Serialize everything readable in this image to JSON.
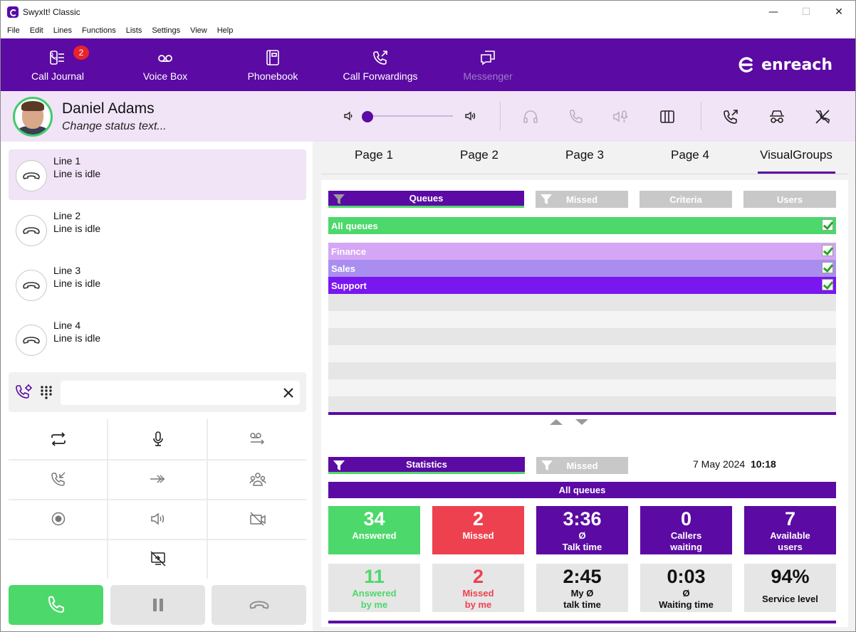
{
  "window": {
    "title": "SwyxIt! Classic",
    "minimize": "—",
    "maximize": "☐",
    "close": "✕"
  },
  "menu": [
    "File",
    "Edit",
    "Lines",
    "Functions",
    "Lists",
    "Settings",
    "View",
    "Help"
  ],
  "toolbar": {
    "items": [
      {
        "label": "Call Journal",
        "icon": "call-journal-icon",
        "badge": "2"
      },
      {
        "label": "Voice Box",
        "icon": "voicemail-icon"
      },
      {
        "label": "Phonebook",
        "icon": "phonebook-icon"
      },
      {
        "label": "Call Forwardings",
        "icon": "call-forward-icon"
      },
      {
        "label": "Messenger",
        "icon": "messenger-icon",
        "disabled": true
      }
    ],
    "brand": "enreach",
    "color": "#5b0aa3"
  },
  "user": {
    "name": "Daniel Adams",
    "status": "Change status text...",
    "presence_color": "#3cce6a",
    "volume": 0.0
  },
  "lines": [
    {
      "name": "Line 1",
      "status": "Line is idle",
      "selected": true
    },
    {
      "name": "Line 2",
      "status": "Line is idle"
    },
    {
      "name": "Line 3",
      "status": "Line is idle"
    },
    {
      "name": "Line 4",
      "status": "Line is idle"
    }
  ],
  "dial": {
    "value": ""
  },
  "tabs": [
    "Page 1",
    "Page 2",
    "Page 3",
    "Page 4",
    "VisualGroups"
  ],
  "active_tab": "VisualGroups",
  "queue_filters": [
    "Queues",
    "Missed",
    "Criteria",
    "Users"
  ],
  "all_queues_label": "All queues",
  "queues": [
    {
      "name": "Finance",
      "color": "#d4a6f5",
      "checked": true
    },
    {
      "name": "Sales",
      "color": "#a98ef0",
      "checked": true
    },
    {
      "name": "Support",
      "color": "#7a16f0",
      "checked": true
    }
  ],
  "stat_filters": [
    "Statistics",
    "Missed"
  ],
  "date": "7 May 2024",
  "time": "10:18",
  "stats_header": "All queues",
  "stats_top": [
    {
      "value": "34",
      "label": "Answered",
      "label2": "",
      "bg": "#4cd86b",
      "fg": "#ffffff"
    },
    {
      "value": "2",
      "label": "Missed",
      "label2": "",
      "bg": "#ee4150",
      "fg": "#ffffff"
    },
    {
      "value": "3:36",
      "label": "Ø",
      "label2": "Talk time",
      "bg": "#5b0aa3",
      "fg": "#ffffff"
    },
    {
      "value": "0",
      "label": "Callers",
      "label2": "waiting",
      "bg": "#5b0aa3",
      "fg": "#ffffff"
    },
    {
      "value": "7",
      "label": "Available",
      "label2": "users",
      "bg": "#5b0aa3",
      "fg": "#ffffff"
    }
  ],
  "stats_bottom": [
    {
      "value": "11",
      "label": "Answered",
      "label2": "by me",
      "bg": "#e6e6e6",
      "fg": "#4cd86b"
    },
    {
      "value": "2",
      "label": "Missed",
      "label2": "by me",
      "bg": "#e6e6e6",
      "fg": "#ee4150"
    },
    {
      "value": "2:45",
      "label": "My Ø",
      "label2": "talk time",
      "bg": "#e6e6e6",
      "fg": "#111111"
    },
    {
      "value": "0:03",
      "label": "Ø",
      "label2": "Waiting time",
      "bg": "#e6e6e6",
      "fg": "#111111"
    },
    {
      "value": "94%",
      "label": "Service level",
      "label2": "",
      "bg": "#e6e6e6",
      "fg": "#111111"
    }
  ]
}
